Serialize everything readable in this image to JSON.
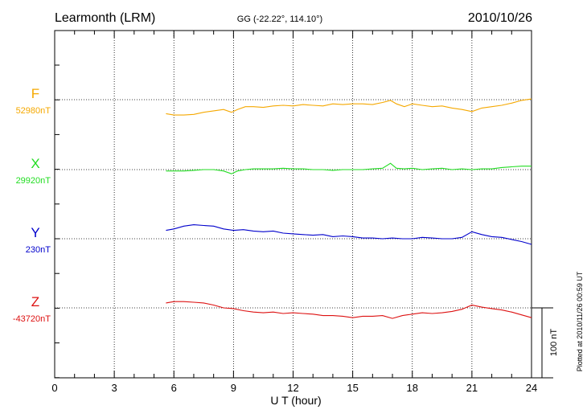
{
  "header": {
    "station": "Learmonth (LRM)",
    "coords": "GG (-22.22°, 114.10°)",
    "date": "2010/10/26"
  },
  "footer": {
    "plotted": "Plotted at 2010/11/26 00:59 UT"
  },
  "chart_data": {
    "type": "line",
    "title": "Learmonth (LRM)",
    "xlabel": "U T (hour)",
    "xlim": [
      0,
      24
    ],
    "xticks": [
      "0",
      "3",
      "6",
      "9",
      "12",
      "15",
      "18",
      "21",
      "24"
    ],
    "grid": true,
    "scale_bar": {
      "label": "100 nT",
      "value_nT": 100
    },
    "series": [
      {
        "name": "F",
        "baseline_label": "52980nT",
        "baseline_nT": 52980,
        "color": "#f5a800",
        "points": [
          [
            5.6,
            52960
          ],
          [
            6.0,
            52958
          ],
          [
            6.5,
            52958
          ],
          [
            7.0,
            52959
          ],
          [
            7.5,
            52962
          ],
          [
            8.0,
            52964
          ],
          [
            8.5,
            52966
          ],
          [
            8.9,
            52962
          ],
          [
            9.2,
            52966
          ],
          [
            9.6,
            52970
          ],
          [
            10.0,
            52970
          ],
          [
            10.5,
            52969
          ],
          [
            11.0,
            52971
          ],
          [
            11.5,
            52972
          ],
          [
            12.0,
            52971
          ],
          [
            12.5,
            52973
          ],
          [
            13.0,
            52972
          ],
          [
            13.5,
            52971
          ],
          [
            14.0,
            52974
          ],
          [
            14.5,
            52973
          ],
          [
            15.0,
            52974
          ],
          [
            15.5,
            52974
          ],
          [
            16.0,
            52973
          ],
          [
            16.5,
            52976
          ],
          [
            16.9,
            52979
          ],
          [
            17.2,
            52974
          ],
          [
            17.6,
            52970
          ],
          [
            18.0,
            52974
          ],
          [
            18.5,
            52972
          ],
          [
            19.0,
            52970
          ],
          [
            19.5,
            52971
          ],
          [
            20.0,
            52968
          ],
          [
            20.5,
            52966
          ],
          [
            21.0,
            52963
          ],
          [
            21.5,
            52968
          ],
          [
            22.0,
            52970
          ],
          [
            22.5,
            52972
          ],
          [
            23.0,
            52975
          ],
          [
            23.5,
            52979
          ],
          [
            24.0,
            52981
          ]
        ]
      },
      {
        "name": "X",
        "baseline_label": "29920nT",
        "baseline_nT": 29920,
        "color": "#22dd22",
        "points": [
          [
            5.6,
            29918
          ],
          [
            6.0,
            29918
          ],
          [
            6.5,
            29918
          ],
          [
            7.0,
            29919
          ],
          [
            7.5,
            29920
          ],
          [
            8.0,
            29920
          ],
          [
            8.5,
            29918
          ],
          [
            8.9,
            29914
          ],
          [
            9.2,
            29918
          ],
          [
            9.6,
            29920
          ],
          [
            10.0,
            29921
          ],
          [
            10.5,
            29921
          ],
          [
            11.0,
            29921
          ],
          [
            11.5,
            29922
          ],
          [
            12.0,
            29921
          ],
          [
            12.5,
            29921
          ],
          [
            13.0,
            29920
          ],
          [
            13.5,
            29920
          ],
          [
            14.0,
            29919
          ],
          [
            14.5,
            29920
          ],
          [
            15.0,
            29920
          ],
          [
            15.5,
            29920
          ],
          [
            16.0,
            29921
          ],
          [
            16.5,
            29922
          ],
          [
            16.9,
            29929
          ],
          [
            17.2,
            29922
          ],
          [
            17.6,
            29921
          ],
          [
            18.0,
            29922
          ],
          [
            18.5,
            29920
          ],
          [
            19.0,
            29921
          ],
          [
            19.5,
            29922
          ],
          [
            20.0,
            29920
          ],
          [
            20.5,
            29921
          ],
          [
            21.0,
            29920
          ],
          [
            21.5,
            29921
          ],
          [
            22.0,
            29921
          ],
          [
            22.5,
            29923
          ],
          [
            23.0,
            29924
          ],
          [
            23.5,
            29925
          ],
          [
            24.0,
            29925
          ]
        ]
      },
      {
        "name": "Y",
        "baseline_label": "230nT",
        "baseline_nT": 230,
        "color": "#0000cc",
        "points": [
          [
            5.6,
            242
          ],
          [
            6.0,
            244
          ],
          [
            6.5,
            248
          ],
          [
            7.0,
            250
          ],
          [
            7.5,
            249
          ],
          [
            8.0,
            248
          ],
          [
            8.5,
            244
          ],
          [
            9.0,
            242
          ],
          [
            9.5,
            243
          ],
          [
            10.0,
            241
          ],
          [
            10.5,
            240
          ],
          [
            11.0,
            241
          ],
          [
            11.5,
            238
          ],
          [
            12.0,
            237
          ],
          [
            12.5,
            236
          ],
          [
            13.0,
            235
          ],
          [
            13.5,
            236
          ],
          [
            14.0,
            233
          ],
          [
            14.5,
            234
          ],
          [
            15.0,
            233
          ],
          [
            15.5,
            231
          ],
          [
            16.0,
            231
          ],
          [
            16.5,
            230
          ],
          [
            17.0,
            231
          ],
          [
            17.5,
            230
          ],
          [
            18.0,
            230
          ],
          [
            18.5,
            232
          ],
          [
            19.0,
            231
          ],
          [
            19.5,
            230
          ],
          [
            20.0,
            230
          ],
          [
            20.5,
            232
          ],
          [
            21.0,
            240
          ],
          [
            21.5,
            236
          ],
          [
            22.0,
            233
          ],
          [
            22.5,
            232
          ],
          [
            23.0,
            229
          ],
          [
            23.5,
            226
          ],
          [
            24.0,
            222
          ]
        ]
      },
      {
        "name": "Z",
        "baseline_label": "-43720nT",
        "baseline_nT": -43720,
        "color": "#dd1111",
        "points": [
          [
            5.6,
            -43713
          ],
          [
            6.0,
            -43711
          ],
          [
            6.5,
            -43711
          ],
          [
            7.0,
            -43712
          ],
          [
            7.5,
            -43713
          ],
          [
            8.0,
            -43716
          ],
          [
            8.5,
            -43720
          ],
          [
            9.0,
            -43721
          ],
          [
            9.5,
            -43724
          ],
          [
            10.0,
            -43726
          ],
          [
            10.5,
            -43727
          ],
          [
            11.0,
            -43726
          ],
          [
            11.5,
            -43728
          ],
          [
            12.0,
            -43727
          ],
          [
            12.5,
            -43728
          ],
          [
            13.0,
            -43729
          ],
          [
            13.5,
            -43731
          ],
          [
            14.0,
            -43731
          ],
          [
            14.5,
            -43732
          ],
          [
            15.0,
            -43734
          ],
          [
            15.5,
            -43732
          ],
          [
            16.0,
            -43732
          ],
          [
            16.5,
            -43731
          ],
          [
            17.0,
            -43735
          ],
          [
            17.5,
            -43731
          ],
          [
            18.0,
            -43729
          ],
          [
            18.5,
            -43727
          ],
          [
            19.0,
            -43728
          ],
          [
            19.5,
            -43727
          ],
          [
            20.0,
            -43725
          ],
          [
            20.5,
            -43722
          ],
          [
            21.0,
            -43716
          ],
          [
            21.5,
            -43719
          ],
          [
            22.0,
            -43721
          ],
          [
            22.5,
            -43723
          ],
          [
            23.0,
            -43726
          ],
          [
            23.5,
            -43730
          ],
          [
            24.0,
            -43734
          ]
        ]
      }
    ]
  }
}
